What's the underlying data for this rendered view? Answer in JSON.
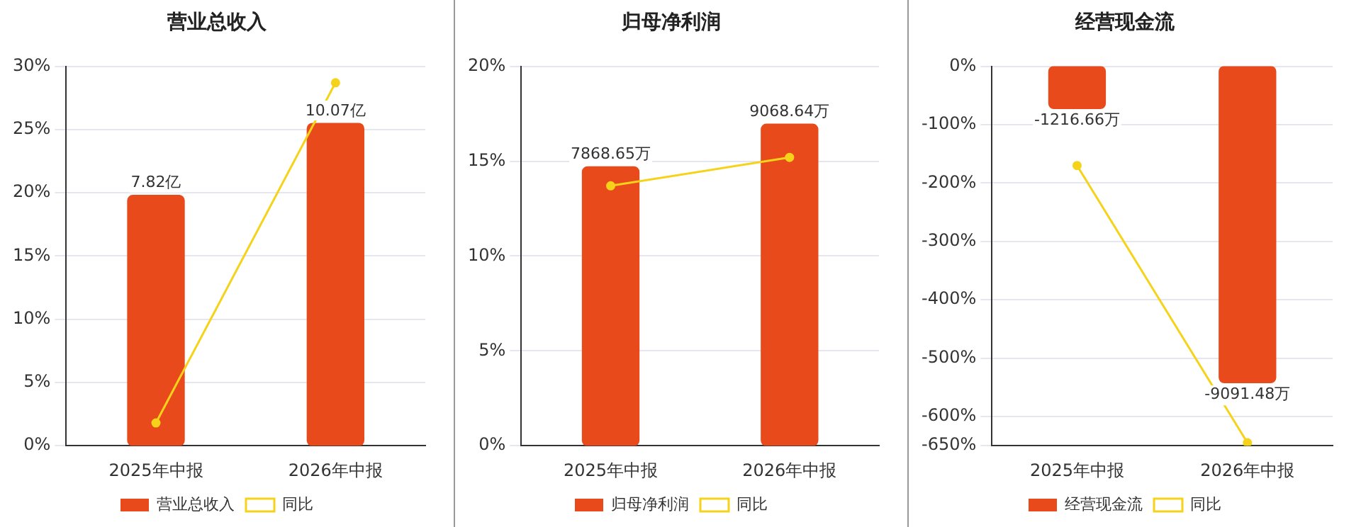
{
  "chart_data": [
    {
      "type": "bar",
      "title": "营业总收入",
      "categories": [
        "2025年中报",
        "2026年中报"
      ],
      "ylim": [
        0,
        30
      ],
      "yticks": [
        {
          "value": 0,
          "label": "0%"
        },
        {
          "value": 5,
          "label": "5%"
        },
        {
          "value": 10,
          "label": "10%"
        },
        {
          "value": 15,
          "label": "15%"
        },
        {
          "value": 20,
          "label": "20%"
        },
        {
          "value": 25,
          "label": "25%"
        },
        {
          "value": 30,
          "label": "30%"
        }
      ],
      "y2lim": [
        0,
        11.85
      ],
      "grid": "y",
      "legend": "bottom",
      "marker": "circle",
      "series": [
        {
          "name": "营业总收入",
          "axis": "y2",
          "color": "#e84a1c",
          "values": [
            7.82,
            10.07
          ],
          "value_labels": [
            "7.82亿",
            "10.07亿"
          ]
        },
        {
          "name": "同比",
          "type": "line",
          "color": "#f5d31a",
          "values": [
            1.8,
            28.7
          ]
        }
      ]
    },
    {
      "type": "bar",
      "title": "归母净利润",
      "categories": [
        "2025年中报",
        "2026年中报"
      ],
      "ylim": [
        0,
        20
      ],
      "yticks": [
        {
          "value": 0,
          "label": "0%"
        },
        {
          "value": 5,
          "label": "5%"
        },
        {
          "value": 10,
          "label": "10%"
        },
        {
          "value": 15,
          "label": "15%"
        },
        {
          "value": 20,
          "label": "20%"
        }
      ],
      "y2lim": [
        0,
        10700
      ],
      "grid": "y",
      "legend": "bottom",
      "marker": "circle",
      "series": [
        {
          "name": "归母净利润",
          "axis": "y2",
          "color": "#e84a1c",
          "values": [
            7868.65,
            9068.64
          ],
          "value_labels": [
            "7868.65万",
            "9068.64万"
          ]
        },
        {
          "name": "同比",
          "type": "line",
          "color": "#f5d31a",
          "values": [
            13.7,
            15.2
          ]
        }
      ]
    },
    {
      "type": "bar",
      "title": "经营现金流",
      "categories": [
        "2025年中报",
        "2026年中报"
      ],
      "ylim": [
        -650,
        0
      ],
      "yticks": [
        {
          "value": -650,
          "label": "-650%"
        },
        {
          "value": -600,
          "label": "-600%"
        },
        {
          "value": -500,
          "label": "-500%"
        },
        {
          "value": -400,
          "label": "-400%"
        },
        {
          "value": -300,
          "label": "-300%"
        },
        {
          "value": -200,
          "label": "-200%"
        },
        {
          "value": -100,
          "label": "-100%"
        },
        {
          "value": 0,
          "label": "0%"
        }
      ],
      "y2lim": [
        -10900,
        0
      ],
      "grid": "y",
      "legend": "bottom",
      "marker": "circle",
      "series": [
        {
          "name": "经营现金流",
          "axis": "y2",
          "color": "#e84a1c",
          "values": [
            -1216.66,
            -9091.48
          ],
          "value_labels": [
            "-1216.66万",
            "-9091.48万"
          ]
        },
        {
          "name": "同比",
          "type": "line",
          "color": "#f5d31a",
          "values": [
            -170,
            -645
          ]
        }
      ]
    }
  ]
}
